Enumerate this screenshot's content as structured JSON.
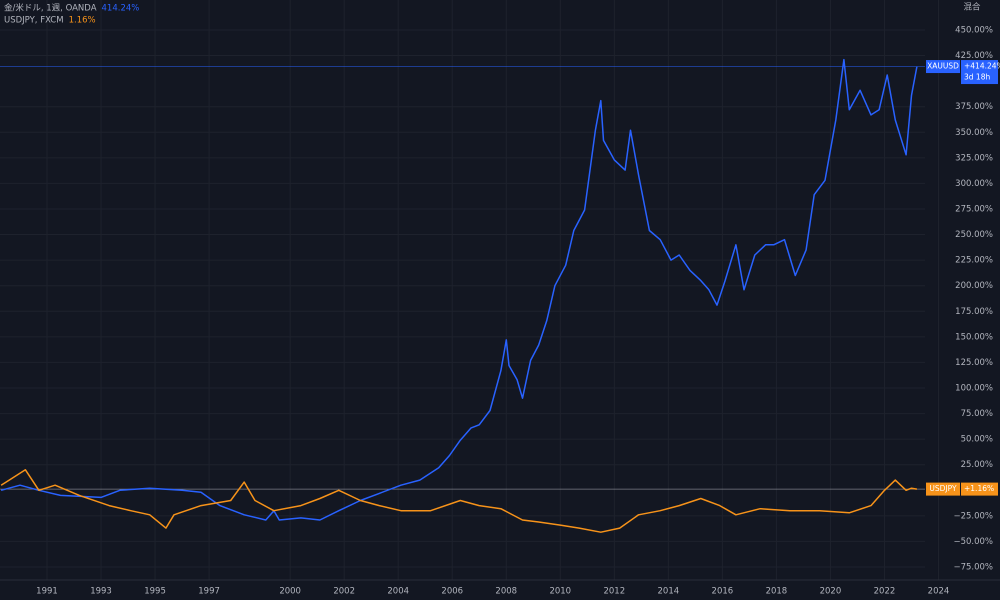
{
  "chart_data": {
    "type": "line",
    "scale_note": "混合",
    "xlim": [
      1989.26,
      2024.5
    ],
    "xticks": [
      1991,
      1993,
      1995,
      1997,
      2000,
      2002,
      2004,
      2006,
      2008,
      2010,
      2012,
      2014,
      2016,
      2018,
      2020,
      2022,
      2024
    ],
    "ylim": [
      -87.7,
      479.3
    ],
    "yticks": [
      {
        "value": 450,
        "label": "450.00%"
      },
      {
        "value": 425,
        "label": "425.00%"
      },
      {
        "value": 375,
        "label": "375.00%"
      },
      {
        "value": 350,
        "label": "350.00%"
      },
      {
        "value": 325,
        "label": "325.00%"
      },
      {
        "value": 300,
        "label": "300.00%"
      },
      {
        "value": 275,
        "label": "275.00%"
      },
      {
        "value": 250,
        "label": "250.00%"
      },
      {
        "value": 225,
        "label": "225.00%"
      },
      {
        "value": 200,
        "label": "200.00%"
      },
      {
        "value": 175,
        "label": "175.00%"
      },
      {
        "value": 150,
        "label": "150.00%"
      },
      {
        "value": 125,
        "label": "125.00%"
      },
      {
        "value": 100,
        "label": "100.00%"
      },
      {
        "value": 75,
        "label": "75.00%"
      },
      {
        "value": 50,
        "label": "50.00%"
      },
      {
        "value": 25,
        "label": "25.00%"
      },
      {
        "value": -25,
        "label": "−25.00%"
      },
      {
        "value": -50,
        "label": "−50.00%"
      },
      {
        "value": -75,
        "label": "−75.00%"
      }
    ],
    "grid": true,
    "series": [
      {
        "name": "XAUUSD",
        "legend": "金/米ドル, 1週, OANDA",
        "header_label": "414.24%",
        "change": 414.24,
        "badge_label": "+414.24%",
        "countdown": "3d 18h",
        "color": "#2962ff",
        "x": [
          1989.3,
          1990.0,
          1990.7,
          1991.5,
          1993.0,
          1993.7,
          1994.8,
          1996.0,
          1996.7,
          1997.4,
          1998.3,
          1999.1,
          1999.4,
          1999.6,
          2000.4,
          2001.1,
          2001.8,
          2002.6,
          2003.3,
          2004.1,
          2004.8,
          2005.5,
          2005.9,
          2006.3,
          2006.7,
          2007.0,
          2007.4,
          2007.8,
          2008.0,
          2008.1,
          2008.4,
          2008.6,
          2008.9,
          2009.2,
          2009.5,
          2009.8,
          2010.2,
          2010.5,
          2010.9,
          2011.3,
          2011.5,
          2011.6,
          2012.0,
          2012.4,
          2012.6,
          2012.9,
          2013.3,
          2013.7,
          2014.1,
          2014.4,
          2014.8,
          2015.2,
          2015.5,
          2015.8,
          2016.1,
          2016.5,
          2016.8,
          2017.2,
          2017.6,
          2017.9,
          2018.3,
          2018.7,
          2019.1,
          2019.4,
          2019.8,
          2020.2,
          2020.5,
          2020.7,
          2021.1,
          2021.5,
          2021.8,
          2022.1,
          2022.4,
          2022.8,
          2023.0,
          2023.2
        ],
        "values": [
          0,
          5,
          0,
          -5,
          -7,
          0,
          2,
          0,
          -2,
          -15,
          -24,
          -29,
          -20,
          -29,
          -27,
          -29,
          -20,
          -10,
          -3,
          5,
          10,
          22,
          34,
          49,
          61,
          64,
          78,
          117,
          147,
          122,
          108,
          90,
          127,
          142,
          166,
          200,
          220,
          254,
          274,
          352,
          381,
          342,
          323,
          313,
          352,
          308,
          254,
          245,
          225,
          230,
          215,
          205,
          196,
          181,
          205,
          240,
          196,
          230,
          240,
          240,
          245,
          210,
          235,
          289,
          303,
          362,
          421,
          372,
          391,
          367,
          372,
          406,
          362,
          328,
          386,
          414.24
        ]
      },
      {
        "name": "USDJPY",
        "legend": "USDJPY, FXCM",
        "header_label": "1.16%",
        "change": 1.16,
        "badge_label": "+1.16%",
        "color": "#f7931a",
        "x": [
          1989.3,
          1989.6,
          1990.2,
          1990.7,
          1991.3,
          1992.2,
          1993.3,
          1994.1,
          1994.8,
          1995.4,
          1995.7,
          1996.7,
          1997.8,
          1998.3,
          1998.7,
          1999.4,
          2000.4,
          2001.1,
          2001.8,
          2002.6,
          2003.3,
          2004.1,
          2005.2,
          2006.3,
          2007.0,
          2007.8,
          2008.6,
          2009.2,
          2010.0,
          2010.7,
          2011.5,
          2012.2,
          2012.9,
          2013.7,
          2014.4,
          2015.2,
          2015.9,
          2016.5,
          2017.4,
          2018.5,
          2019.6,
          2020.7,
          2021.5,
          2022.0,
          2022.4,
          2022.8,
          2023.0,
          2023.2
        ],
        "values": [
          5,
          10,
          20,
          0,
          5,
          -5,
          -15,
          -20,
          -24,
          -37,
          -24,
          -15,
          -10,
          8,
          -10,
          -20,
          -15,
          -8,
          0,
          -10,
          -15,
          -20,
          -20,
          -10,
          -15,
          -18,
          -29,
          -31,
          -34,
          -37,
          -41,
          -37,
          -24,
          -20,
          -15,
          -8,
          -15,
          -24,
          -18,
          -20,
          -20,
          -22,
          -15,
          0,
          10,
          0,
          2,
          1.16
        ]
      }
    ]
  }
}
